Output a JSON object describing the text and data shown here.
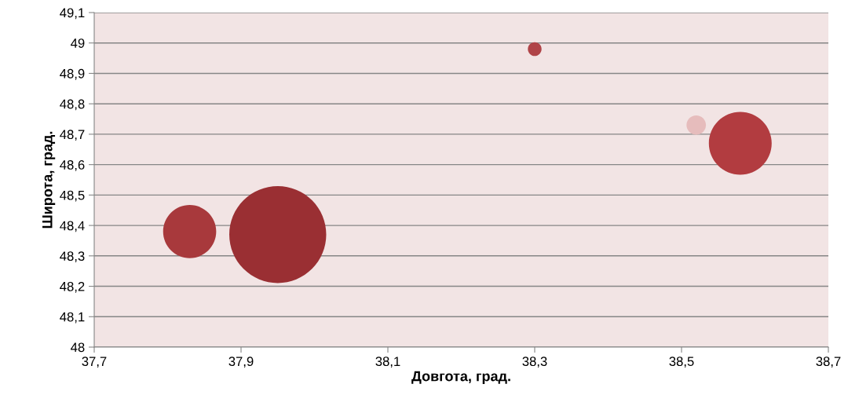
{
  "chart_data": {
    "type": "bubble",
    "xlabel": "Довгота, град.",
    "ylabel": "Широта, град.",
    "x": [
      37.83,
      37.95,
      38.3,
      38.52,
      38.58
    ],
    "values": [
      48.38,
      48.37,
      48.98,
      48.73,
      48.67
    ],
    "sizes": [
      0.3,
      1,
      0.02,
      0.04,
      0.42
    ],
    "colors": [
      "#a8393c",
      "#9a2f33",
      "#b04448",
      "#e6bcbc",
      "#b23c40"
    ],
    "xlim": [
      37.7,
      38.7
    ],
    "xticks": [
      {
        "value": 37.7,
        "label": "37,7"
      },
      {
        "value": 37.9,
        "label": "37,9"
      },
      {
        "value": 38.1,
        "label": "38,1"
      },
      {
        "value": 38.3,
        "label": "38,3"
      },
      {
        "value": 38.5,
        "label": "38,5"
      },
      {
        "value": 38.7,
        "label": "38,7"
      }
    ],
    "ylim": [
      48,
      49.1
    ],
    "yticks": [
      48,
      {
        "value": 48.1,
        "label": "48,1"
      },
      {
        "value": 48.2,
        "label": "48,2"
      },
      {
        "value": 48.3,
        "label": "48,3"
      },
      {
        "value": 48.4,
        "label": "48,4"
      },
      {
        "value": 48.5,
        "label": "48,5"
      },
      {
        "value": 48.6,
        "label": "48,6"
      },
      {
        "value": 48.7,
        "label": "48,7"
      },
      {
        "value": 48.8,
        "label": "48,8"
      },
      {
        "value": 48.9,
        "label": "48,9"
      },
      49,
      {
        "value": 49.1,
        "label": "49,1"
      }
    ],
    "grid": "y"
  }
}
